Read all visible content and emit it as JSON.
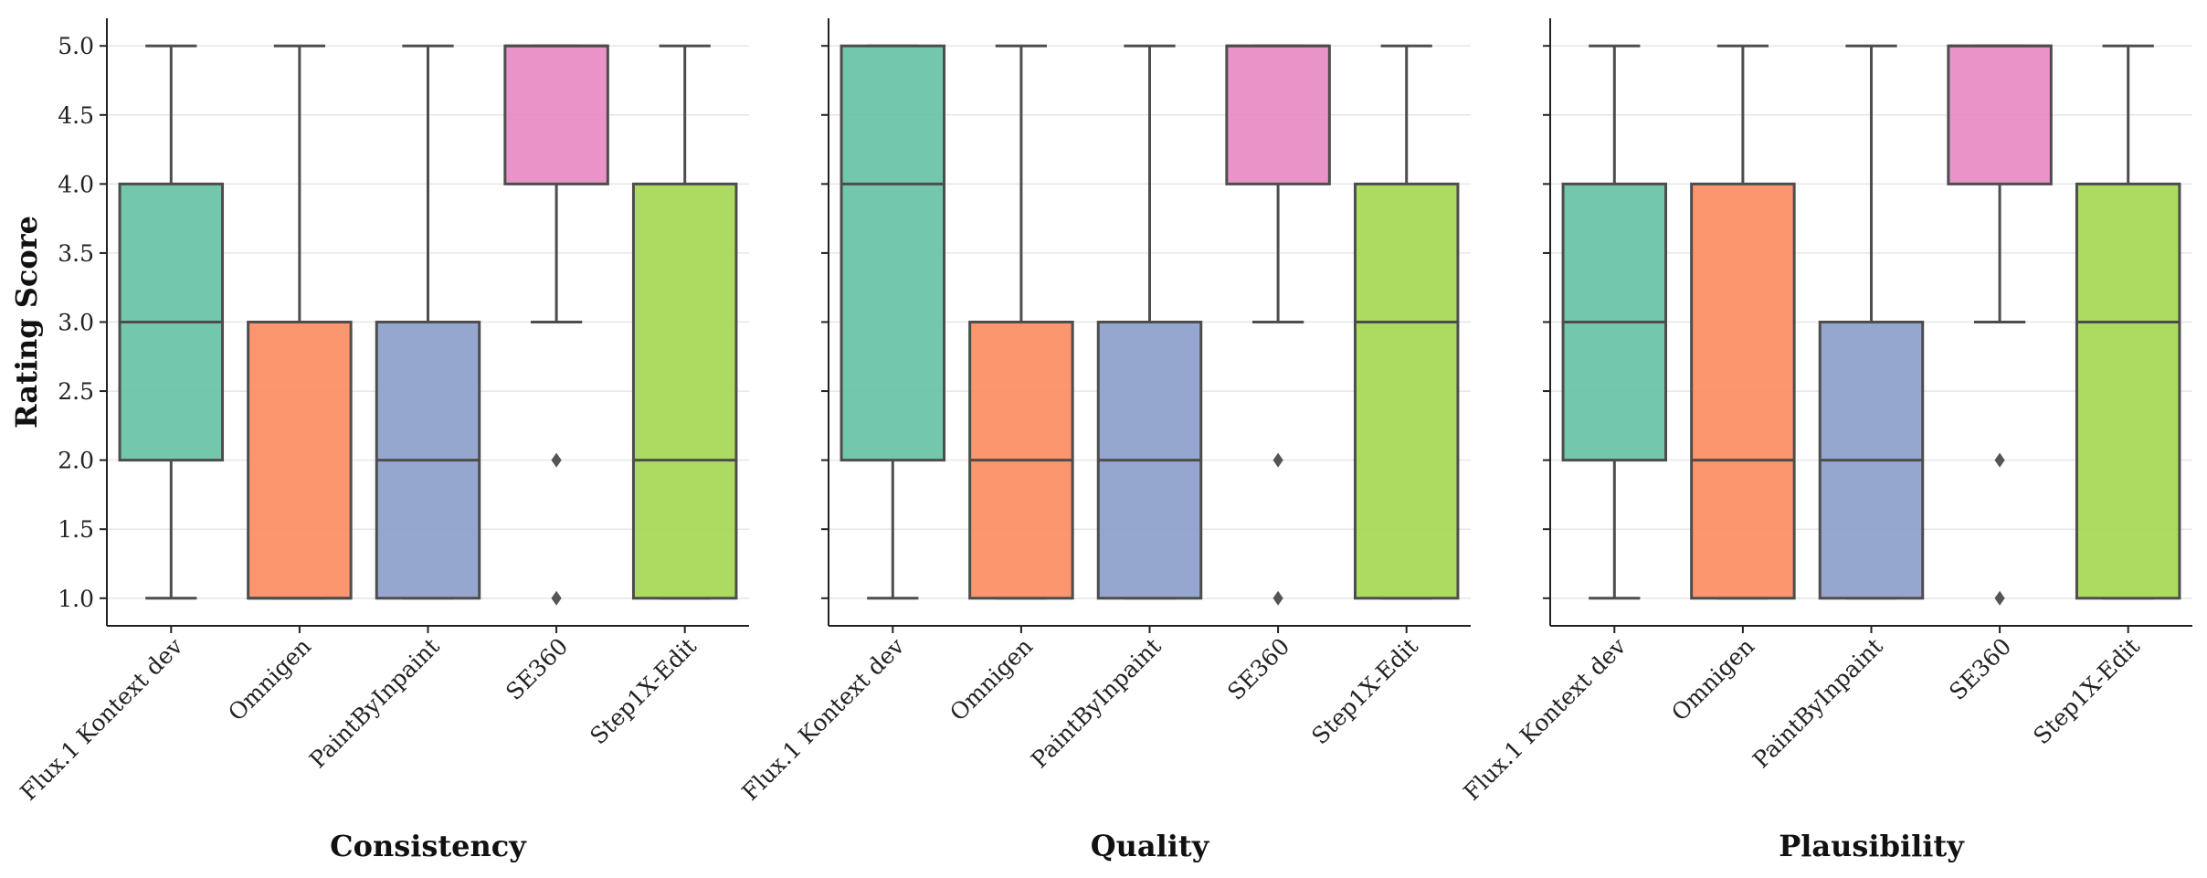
{
  "chart_data": {
    "type": "box",
    "ylabel": "Rating Score",
    "ylim": [
      0.8,
      5.2
    ],
    "yticks": [
      1.0,
      1.5,
      2.0,
      2.5,
      3.0,
      3.5,
      4.0,
      4.5,
      5.0
    ],
    "ytick_labels": [
      "1.0",
      "1.5",
      "2.0",
      "2.5",
      "3.0",
      "3.5",
      "4.0",
      "4.5",
      "5.0"
    ],
    "grid": "horizontal",
    "categories": [
      "Flux.1 Kontext dev",
      "Omnigen",
      "PaintByInpaint",
      "SE360",
      "Step1X-Edit"
    ],
    "colors": [
      "#66c2a5",
      "#fc8d62",
      "#8da0cb",
      "#e78ac3",
      "#a6d854"
    ],
    "panels": [
      {
        "title": "Consistency",
        "boxes": [
          {
            "whislo": 1,
            "q1": 2,
            "med": 3,
            "q3": 4,
            "whishi": 5,
            "fliers": []
          },
          {
            "whislo": 1,
            "q1": 1,
            "med": 1,
            "q3": 3,
            "whishi": 5,
            "fliers": []
          },
          {
            "whislo": 1,
            "q1": 1,
            "med": 2,
            "q3": 3,
            "whishi": 5,
            "fliers": []
          },
          {
            "whislo": 3,
            "q1": 4,
            "med": 5,
            "q3": 5,
            "whishi": 5,
            "fliers": [
              2,
              1
            ]
          },
          {
            "whislo": 1,
            "q1": 1,
            "med": 2,
            "q3": 4,
            "whishi": 5,
            "fliers": []
          }
        ]
      },
      {
        "title": "Quality",
        "boxes": [
          {
            "whislo": 1,
            "q1": 2,
            "med": 4,
            "q3": 5,
            "whishi": 5,
            "fliers": []
          },
          {
            "whislo": 1,
            "q1": 1,
            "med": 2,
            "q3": 3,
            "whishi": 5,
            "fliers": []
          },
          {
            "whislo": 1,
            "q1": 1,
            "med": 2,
            "q3": 3,
            "whishi": 5,
            "fliers": []
          },
          {
            "whislo": 3,
            "q1": 4,
            "med": 5,
            "q3": 5,
            "whishi": 5,
            "fliers": [
              2,
              1
            ]
          },
          {
            "whislo": 1,
            "q1": 1,
            "med": 3,
            "q3": 4,
            "whishi": 5,
            "fliers": []
          }
        ]
      },
      {
        "title": "Plausibility",
        "boxes": [
          {
            "whislo": 1,
            "q1": 2,
            "med": 3,
            "q3": 4,
            "whishi": 5,
            "fliers": []
          },
          {
            "whislo": 1,
            "q1": 1,
            "med": 2,
            "q3": 4,
            "whishi": 5,
            "fliers": []
          },
          {
            "whislo": 1,
            "q1": 1,
            "med": 2,
            "q3": 3,
            "whishi": 5,
            "fliers": []
          },
          {
            "whislo": 3,
            "q1": 4,
            "med": 5,
            "q3": 5,
            "whishi": 5,
            "fliers": [
              2,
              1
            ]
          },
          {
            "whislo": 1,
            "q1": 1,
            "med": 3,
            "q3": 4,
            "whishi": 5,
            "fliers": []
          }
        ]
      }
    ]
  }
}
